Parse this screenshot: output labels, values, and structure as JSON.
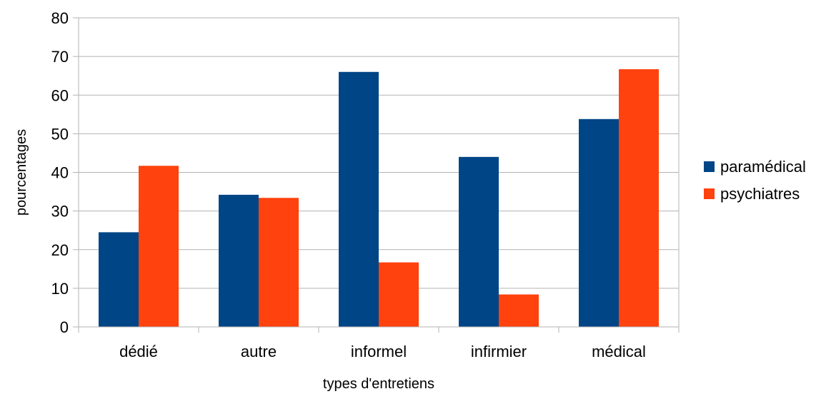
{
  "chart_data": {
    "type": "bar",
    "title": "",
    "xlabel": "types d'entretiens",
    "ylabel": "pourcentages",
    "ylim": [
      0,
      80
    ],
    "yticks": [
      0,
      10,
      20,
      30,
      40,
      50,
      60,
      70,
      80
    ],
    "categories": [
      "dédié",
      "autre",
      "informel",
      "infirmier",
      "médical"
    ],
    "series": [
      {
        "name": "paramédical",
        "color": "#004586",
        "values": [
          24.5,
          34.2,
          66,
          44,
          53.8
        ]
      },
      {
        "name": "psychiatres",
        "color": "#ff420e",
        "values": [
          41.7,
          33.4,
          16.7,
          8.4,
          66.7
        ]
      }
    ],
    "grid": true,
    "legend": "right"
  }
}
